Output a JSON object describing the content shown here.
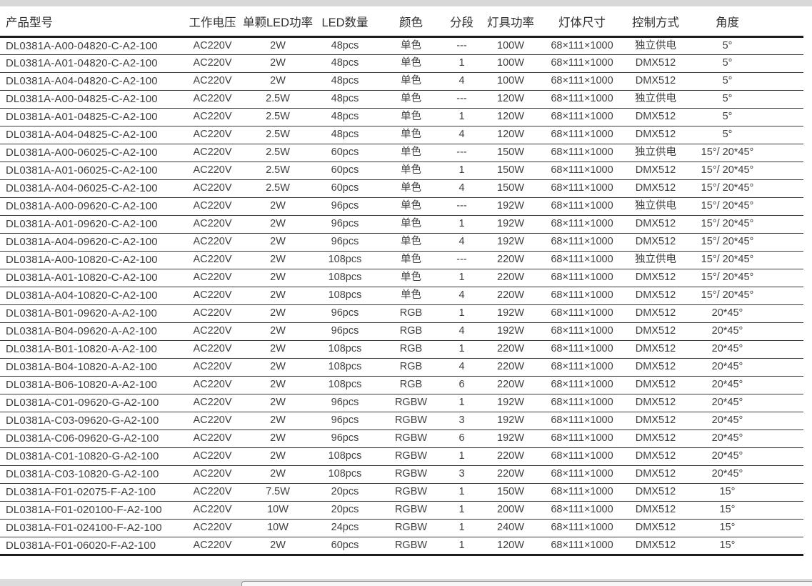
{
  "page": {
    "top_strip_color": "#d8d8d8",
    "rule_color": "#1c1c1c",
    "text_color": "#3f3f3f"
  },
  "table": {
    "headers": {
      "model": "产品型号",
      "voltage": "工作电压",
      "led_power": "单颗LED功率",
      "led_qty": "LED数量",
      "color": "颜色",
      "segments": "分段",
      "fixture_power": "灯具功率",
      "size": "灯体尺寸",
      "control": "控制方式",
      "angle": "角度"
    },
    "column_keys": [
      "model",
      "voltage",
      "led_power",
      "led_qty",
      "color",
      "segments",
      "fixture_power",
      "size",
      "control",
      "angle"
    ],
    "rows": [
      [
        "DL0381A-A00-04820-C-A2-100",
        "AC220V",
        "2W",
        "48pcs",
        "单色",
        "---",
        "100W",
        "68×111×1000",
        "独立供电",
        "5°"
      ],
      [
        "DL0381A-A01-04820-C-A2-100",
        "AC220V",
        "2W",
        "48pcs",
        "单色",
        "1",
        "100W",
        "68×111×1000",
        "DMX512",
        "5°"
      ],
      [
        "DL0381A-A04-04820-C-A2-100",
        "AC220V",
        "2W",
        "48pcs",
        "单色",
        "4",
        "100W",
        "68×111×1000",
        "DMX512",
        "5°"
      ],
      [
        "DL0381A-A00-04825-C-A2-100",
        "AC220V",
        "2.5W",
        "48pcs",
        "单色",
        "---",
        "120W",
        "68×111×1000",
        "独立供电",
        "5°"
      ],
      [
        "DL0381A-A01-04825-C-A2-100",
        "AC220V",
        "2.5W",
        "48pcs",
        "单色",
        "1",
        "120W",
        "68×111×1000",
        "DMX512",
        "5°"
      ],
      [
        "DL0381A-A04-04825-C-A2-100",
        "AC220V",
        "2.5W",
        "48pcs",
        "单色",
        "4",
        "120W",
        "68×111×1000",
        "DMX512",
        "5°"
      ],
      [
        "DL0381A-A00-06025-C-A2-100",
        "AC220V",
        "2.5W",
        "60pcs",
        "单色",
        "---",
        "150W",
        "68×111×1000",
        "独立供电",
        "15°/ 20*45°"
      ],
      [
        "DL0381A-A01-06025-C-A2-100",
        "AC220V",
        "2.5W",
        "60pcs",
        "单色",
        "1",
        "150W",
        "68×111×1000",
        "DMX512",
        "15°/ 20*45°"
      ],
      [
        "DL0381A-A04-06025-C-A2-100",
        "AC220V",
        "2.5W",
        "60pcs",
        "单色",
        "4",
        "150W",
        "68×111×1000",
        "DMX512",
        "15°/ 20*45°"
      ],
      [
        "DL0381A-A00-09620-C-A2-100",
        "AC220V",
        "2W",
        "96pcs",
        "单色",
        "---",
        "192W",
        "68×111×1000",
        "独立供电",
        "15°/ 20*45°"
      ],
      [
        "DL0381A-A01-09620-C-A2-100",
        "AC220V",
        "2W",
        "96pcs",
        "单色",
        "1",
        "192W",
        "68×111×1000",
        "DMX512",
        "15°/ 20*45°"
      ],
      [
        "DL0381A-A04-09620-C-A2-100",
        "AC220V",
        "2W",
        "96pcs",
        "单色",
        "4",
        "192W",
        "68×111×1000",
        "DMX512",
        "15°/ 20*45°"
      ],
      [
        "DL0381A-A00-10820-C-A2-100",
        "AC220V",
        "2W",
        "108pcs",
        "单色",
        "---",
        "220W",
        "68×111×1000",
        "独立供电",
        "15°/ 20*45°"
      ],
      [
        "DL0381A-A01-10820-C-A2-100",
        "AC220V",
        "2W",
        "108pcs",
        "单色",
        "1",
        "220W",
        "68×111×1000",
        "DMX512",
        "15°/ 20*45°"
      ],
      [
        "DL0381A-A04-10820-C-A2-100",
        "AC220V",
        "2W",
        "108pcs",
        "单色",
        "4",
        "220W",
        "68×111×1000",
        "DMX512",
        "15°/ 20*45°"
      ],
      [
        "DL0381A-B01-09620-A-A2-100",
        "AC220V",
        "2W",
        "96pcs",
        "RGB",
        "1",
        "192W",
        "68×111×1000",
        "DMX512",
        "20*45°"
      ],
      [
        "DL0381A-B04-09620-A-A2-100",
        "AC220V",
        "2W",
        "96pcs",
        "RGB",
        "4",
        "192W",
        "68×111×1000",
        "DMX512",
        "20*45°"
      ],
      [
        "DL0381A-B01-10820-A-A2-100",
        "AC220V",
        "2W",
        "108pcs",
        "RGB",
        "1",
        "220W",
        "68×111×1000",
        "DMX512",
        "20*45°"
      ],
      [
        "DL0381A-B04-10820-A-A2-100",
        "AC220V",
        "2W",
        "108pcs",
        "RGB",
        "4",
        "220W",
        "68×111×1000",
        "DMX512",
        "20*45°"
      ],
      [
        "DL0381A-B06-10820-A-A2-100",
        "AC220V",
        "2W",
        "108pcs",
        "RGB",
        "6",
        "220W",
        "68×111×1000",
        "DMX512",
        "20*45°"
      ],
      [
        "DL0381A-C01-09620-G-A2-100",
        "AC220V",
        "2W",
        "96pcs",
        "RGBW",
        "1",
        "192W",
        "68×111×1000",
        "DMX512",
        "20*45°"
      ],
      [
        "DL0381A-C03-09620-G-A2-100",
        "AC220V",
        "2W",
        "96pcs",
        "RGBW",
        "3",
        "192W",
        "68×111×1000",
        "DMX512",
        "20*45°"
      ],
      [
        "DL0381A-C06-09620-G-A2-100",
        "AC220V",
        "2W",
        "96pcs",
        "RGBW",
        "6",
        "192W",
        "68×111×1000",
        "DMX512",
        "20*45°"
      ],
      [
        "DL0381A-C01-10820-G-A2-100",
        "AC220V",
        "2W",
        "108pcs",
        "RGBW",
        "1",
        "220W",
        "68×111×1000",
        "DMX512",
        "20*45°"
      ],
      [
        "DL0381A-C03-10820-G-A2-100",
        "AC220V",
        "2W",
        "108pcs",
        "RGBW",
        "3",
        "220W",
        "68×111×1000",
        "DMX512",
        "20*45°"
      ],
      [
        "DL0381A-F01-02075-F-A2-100",
        "AC220V",
        "7.5W",
        "20pcs",
        "RGBW",
        "1",
        "150W",
        "68×111×1000",
        "DMX512",
        "15°"
      ],
      [
        "DL0381A-F01-020100-F-A2-100",
        "AC220V",
        "10W",
        "20pcs",
        "RGBW",
        "1",
        "200W",
        "68×111×1000",
        "DMX512",
        "15°"
      ],
      [
        "DL0381A-F01-024100-F-A2-100",
        "AC220V",
        "10W",
        "24pcs",
        "RGBW",
        "1",
        "240W",
        "68×111×1000",
        "DMX512",
        "15°"
      ],
      [
        "DL0381A-F01-06020-F-A2-100",
        "AC220V",
        "2W",
        "60pcs",
        "RGBW",
        "1",
        "120W",
        "68×111×1000",
        "DMX512",
        "15°"
      ]
    ]
  }
}
